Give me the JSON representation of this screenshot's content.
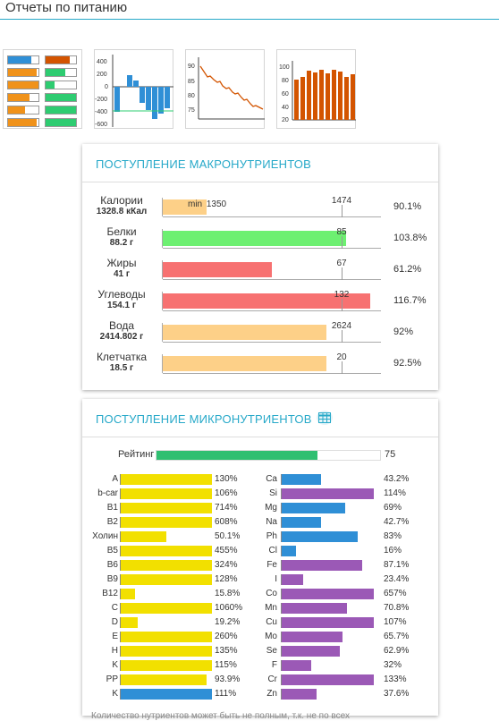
{
  "page": {
    "title": "Отчеты по питанию"
  },
  "thumbnails": [
    {
      "name": "bars-comparison-thumbnail",
      "label": "hbar"
    },
    {
      "name": "deviation-chart-thumbnail",
      "ticks": [
        "400",
        "200",
        "0",
        "-200",
        "-400",
        "-600"
      ]
    },
    {
      "name": "weight-line-thumbnail",
      "ticks": [
        "90",
        "85",
        "80",
        "75"
      ]
    },
    {
      "name": "column-chart-thumbnail",
      "ticks": [
        "100",
        "80",
        "60",
        "40",
        "20"
      ]
    }
  ],
  "macro": {
    "title": "Поступление макронутриентов",
    "min_label": "min",
    "rows": [
      {
        "name": "Калории",
        "value": "1328.8 кКал",
        "left_tick": "1350",
        "norm": "1474",
        "percent": "90.1%",
        "fill": 0.2,
        "color": "#fdd088"
      },
      {
        "name": "Белки",
        "value": "88.2 г",
        "norm": "85",
        "percent": "103.8%",
        "fill": 0.84,
        "color": "#6df071"
      },
      {
        "name": "Жиры",
        "value": "41 г",
        "norm": "67",
        "percent": "61.2%",
        "fill": 0.5,
        "color": "#f77171"
      },
      {
        "name": "Углеводы",
        "value": "154.1 г",
        "norm": "132",
        "percent": "116.7%",
        "fill": 0.95,
        "color": "#f77171"
      },
      {
        "name": "Вода",
        "value": "2414.802 г",
        "norm": "2624",
        "percent": "92%",
        "fill": 0.75,
        "color": "#fdd088"
      },
      {
        "name": "Клетчатка",
        "value": "18.5 г",
        "norm": "20",
        "percent": "92.5%",
        "fill": 0.75,
        "color": "#fdd088"
      }
    ]
  },
  "micro": {
    "title": "Поступление микронутриентов",
    "rating_label": "Рейтинг",
    "rating_value": "75",
    "rating_fraction": 0.72,
    "vitamins": [
      {
        "name": "A",
        "percent": "130%",
        "fill": 1.0,
        "color": "#f2e000"
      },
      {
        "name": "b-car",
        "percent": "106%",
        "fill": 1.0,
        "color": "#f2e000"
      },
      {
        "name": "B1",
        "percent": "714%",
        "fill": 1.0,
        "color": "#f2e000"
      },
      {
        "name": "B2",
        "percent": "608%",
        "fill": 1.0,
        "color": "#f2e000"
      },
      {
        "name": "Холин",
        "percent": "50.1%",
        "fill": 0.5,
        "color": "#f2e000"
      },
      {
        "name": "B5",
        "percent": "455%",
        "fill": 1.0,
        "color": "#f2e000"
      },
      {
        "name": "B6",
        "percent": "324%",
        "fill": 1.0,
        "color": "#f2e000"
      },
      {
        "name": "B9",
        "percent": "128%",
        "fill": 1.0,
        "color": "#f2e000"
      },
      {
        "name": "B12",
        "percent": "15.8%",
        "fill": 0.16,
        "color": "#f2e000"
      },
      {
        "name": "C",
        "percent": "1060%",
        "fill": 1.0,
        "color": "#f2e000"
      },
      {
        "name": "D",
        "percent": "19.2%",
        "fill": 0.19,
        "color": "#f2e000"
      },
      {
        "name": "E",
        "percent": "260%",
        "fill": 1.0,
        "color": "#f2e000"
      },
      {
        "name": "H",
        "percent": "135%",
        "fill": 1.0,
        "color": "#f2e000"
      },
      {
        "name": "K",
        "percent": "115%",
        "fill": 1.0,
        "color": "#f2e000"
      },
      {
        "name": "PP",
        "percent": "93.9%",
        "fill": 0.94,
        "color": "#f2e000"
      },
      {
        "name": "K",
        "percent": "111%",
        "fill": 1.0,
        "color": "#2f8fd6"
      }
    ],
    "minerals": [
      {
        "name": "Ca",
        "percent": "43.2%",
        "fill": 0.43,
        "color": "#2f8fd6"
      },
      {
        "name": "Si",
        "percent": "114%",
        "fill": 1.0,
        "color": "#9b59b6"
      },
      {
        "name": "Mg",
        "percent": "69%",
        "fill": 0.69,
        "color": "#2f8fd6"
      },
      {
        "name": "Na",
        "percent": "42.7%",
        "fill": 0.43,
        "color": "#2f8fd6"
      },
      {
        "name": "Ph",
        "percent": "83%",
        "fill": 0.83,
        "color": "#2f8fd6"
      },
      {
        "name": "Cl",
        "percent": "16%",
        "fill": 0.16,
        "color": "#2f8fd6"
      },
      {
        "name": "Fe",
        "percent": "87.1%",
        "fill": 0.87,
        "color": "#9b59b6"
      },
      {
        "name": "I",
        "percent": "23.4%",
        "fill": 0.23,
        "color": "#9b59b6"
      },
      {
        "name": "Co",
        "percent": "657%",
        "fill": 1.0,
        "color": "#9b59b6"
      },
      {
        "name": "Mn",
        "percent": "70.8%",
        "fill": 0.71,
        "color": "#9b59b6"
      },
      {
        "name": "Cu",
        "percent": "107%",
        "fill": 1.0,
        "color": "#9b59b6"
      },
      {
        "name": "Mo",
        "percent": "65.7%",
        "fill": 0.66,
        "color": "#9b59b6"
      },
      {
        "name": "Se",
        "percent": "62.9%",
        "fill": 0.63,
        "color": "#9b59b6"
      },
      {
        "name": "F",
        "percent": "32%",
        "fill": 0.32,
        "color": "#9b59b6"
      },
      {
        "name": "Cr",
        "percent": "133%",
        "fill": 1.0,
        "color": "#9b59b6"
      },
      {
        "name": "Zn",
        "percent": "37.6%",
        "fill": 0.38,
        "color": "#9b59b6"
      }
    ],
    "footnote": "Количество нутриентов может быть не полным, т.к. не по всех"
  }
}
